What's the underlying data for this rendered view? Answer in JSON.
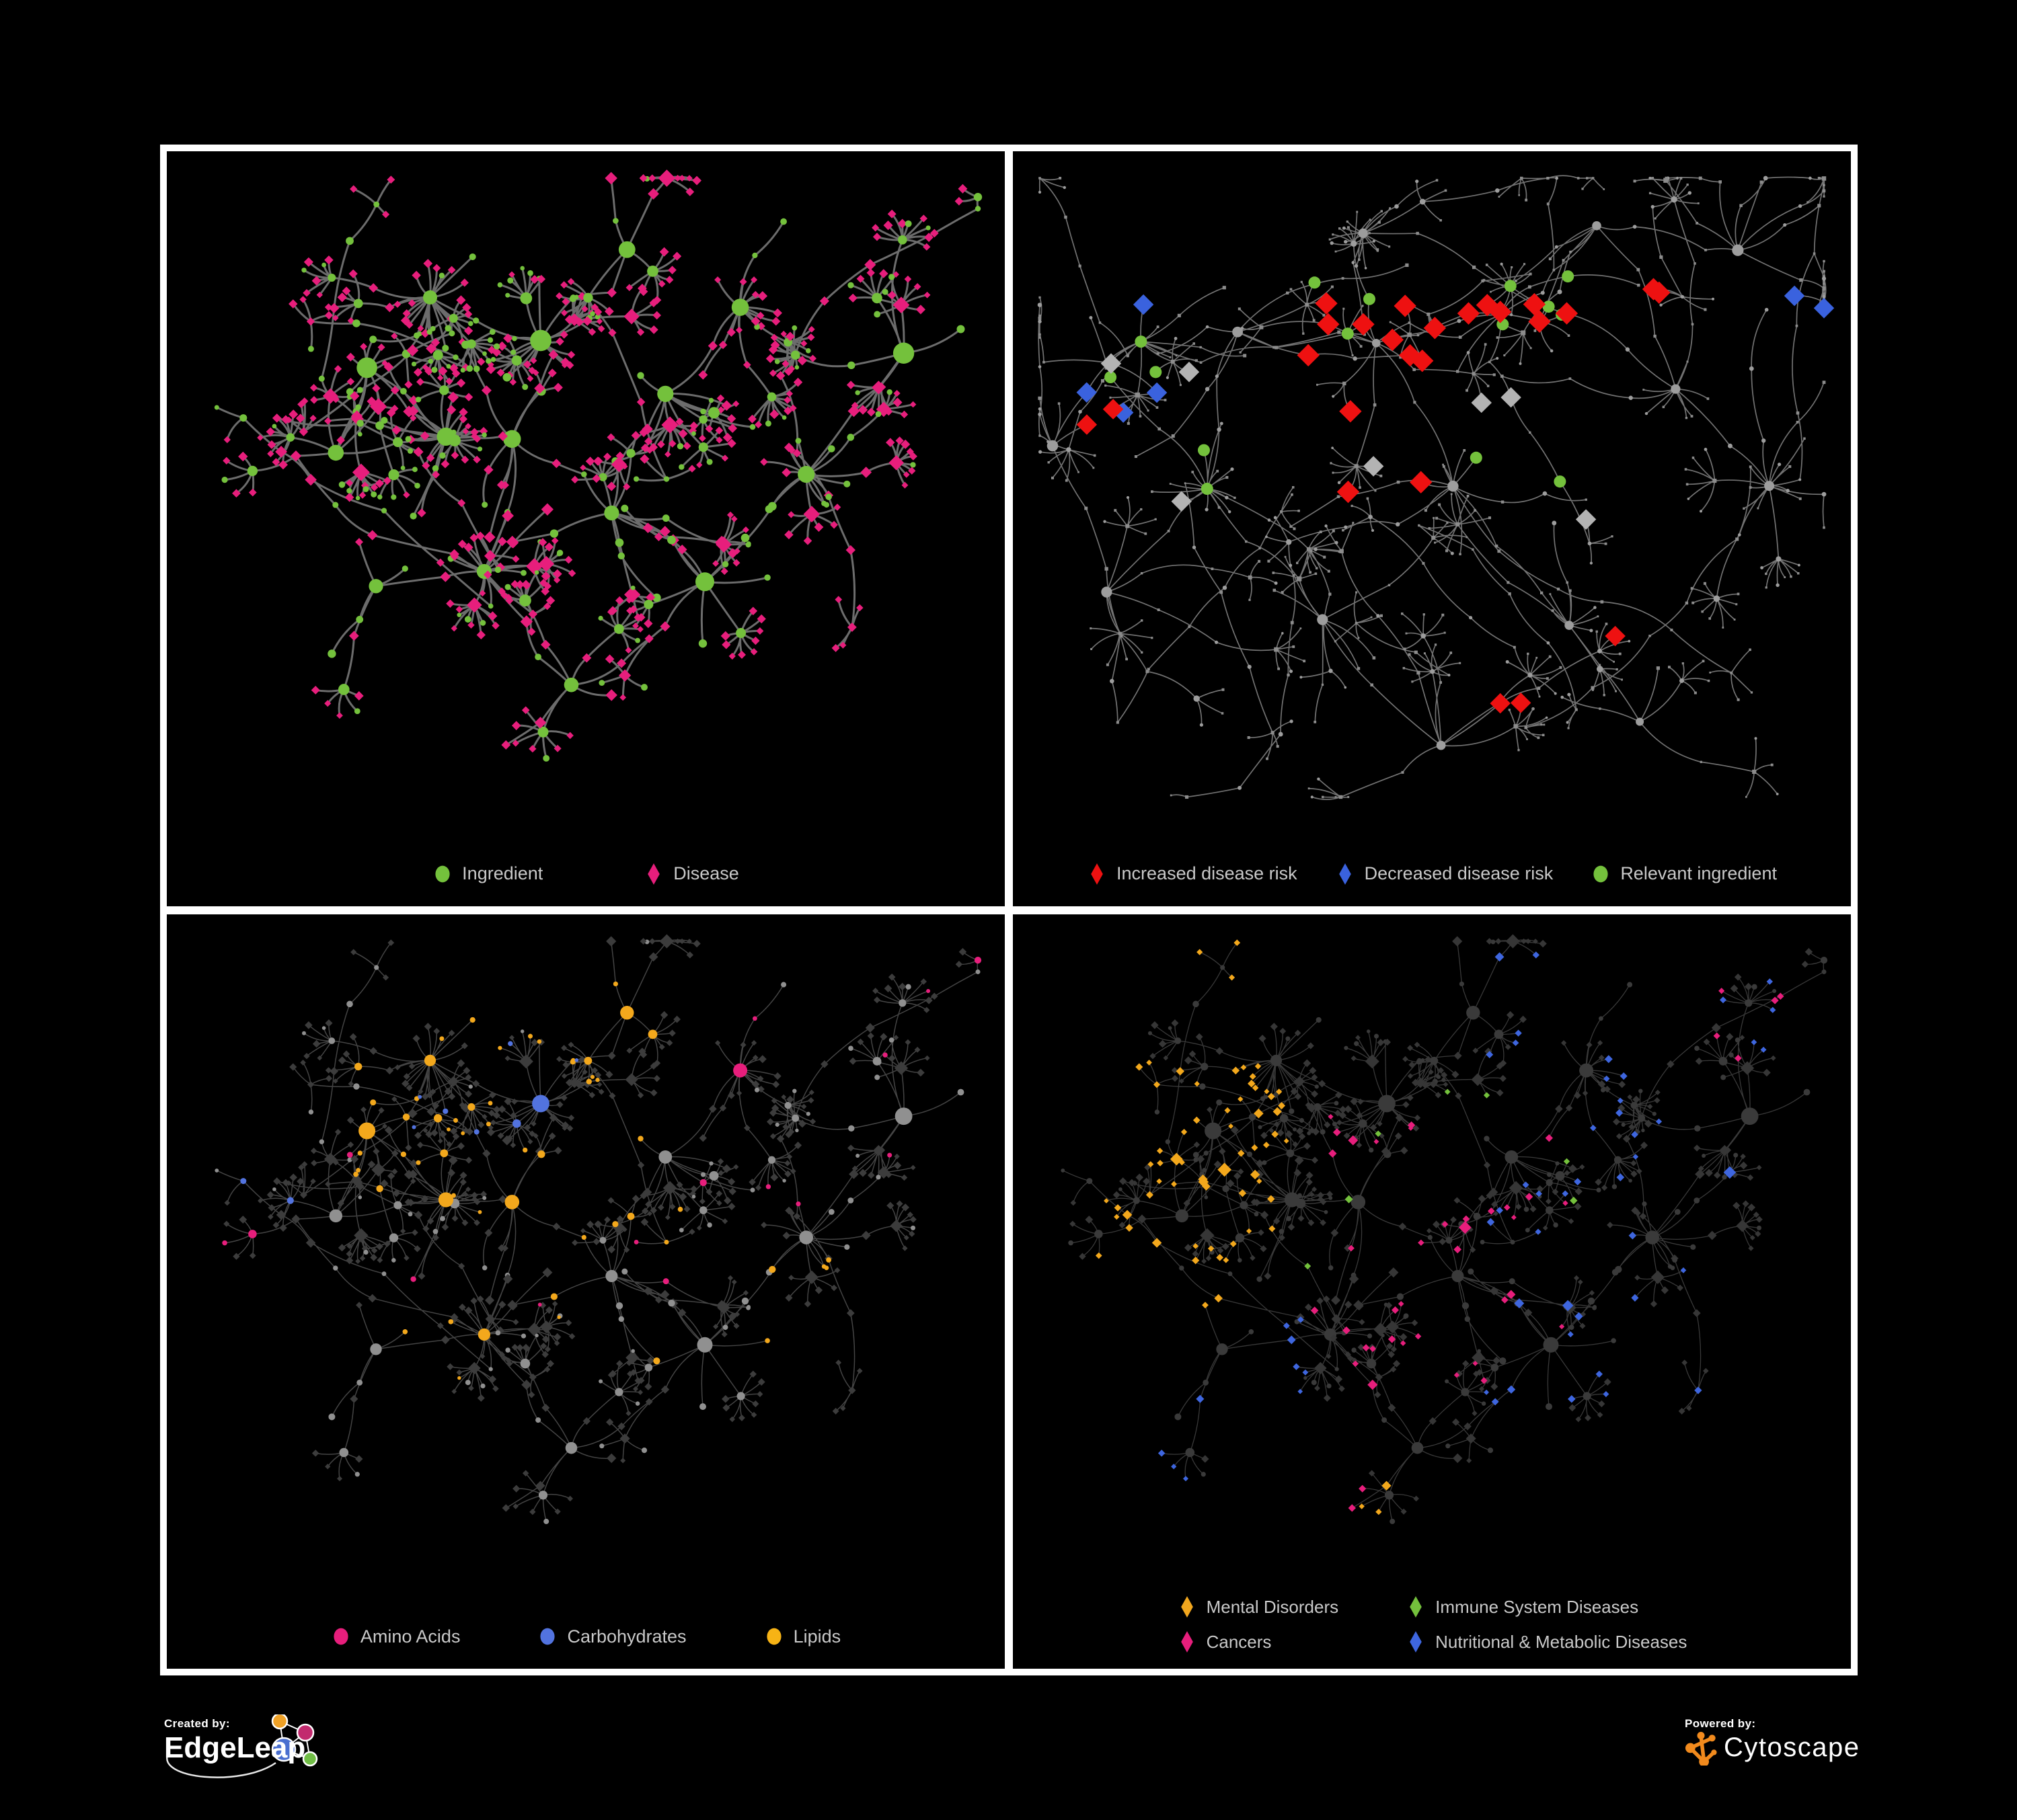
{
  "footer": {
    "created_by": "Created by:",
    "brand_left": "EdgeLeap",
    "powered_by": "Powered by:",
    "brand_right": "Cytoscape"
  },
  "colors": {
    "green": "#74C13C",
    "pink": "#E71E7C",
    "red": "#EE1111",
    "blue_dark": "#3A62DE",
    "blue_mid": "#5273DF",
    "blue_deep": "#3E66DF",
    "orange": "#F3A81C",
    "gold": "#F7B315",
    "gray_node": "#8f8f8f",
    "dark_diamond": "#3a3a3a",
    "legend_text": "#C9C9C9",
    "frame": "#FFFFFF",
    "background": "#000000"
  },
  "structures": {
    "A": {
      "seed": 1402,
      "depth": 2,
      "bMin": 4,
      "bMax": 8,
      "segMin": 45,
      "segMax": 95,
      "leafMin": 22,
      "leafMax": 46,
      "burstProb": 0.5,
      "burstMax": 9,
      "hubBurst": 0.45,
      "extra": 9,
      "leafIng": 0.15,
      "chainIng": 0.4,
      "starIng": 0.55,
      "anchors": [
        [
          0.25,
          0.3
        ],
        [
          0.2,
          0.47
        ],
        [
          0.34,
          0.42
        ],
        [
          0.3,
          0.22
        ],
        [
          0.45,
          0.26
        ],
        [
          0.42,
          0.44
        ],
        [
          0.36,
          0.6
        ],
        [
          0.24,
          0.63
        ],
        [
          0.52,
          0.52
        ],
        [
          0.6,
          0.36
        ],
        [
          0.7,
          0.22
        ],
        [
          0.63,
          0.62
        ],
        [
          0.47,
          0.78
        ],
        [
          0.76,
          0.5
        ],
        [
          0.86,
          0.28
        ],
        [
          0.56,
          0.14
        ]
      ]
    },
    "B": {
      "seed": 977,
      "depth": 3,
      "bMin": 3,
      "bMax": 7,
      "segMin": 55,
      "segMax": 115,
      "leafMin": 25,
      "leafMax": 50,
      "burstProb": 0.45,
      "burstMax": 8,
      "hubBurst": 0.3,
      "extra": 18,
      "leafIng": 0.2,
      "chainIng": 0.3,
      "starIng": 0.4,
      "anchors": [
        [
          0.14,
          0.3
        ],
        [
          0.28,
          0.26
        ],
        [
          0.44,
          0.28
        ],
        [
          0.58,
          0.22
        ],
        [
          0.4,
          0.12
        ],
        [
          0.68,
          0.1
        ],
        [
          0.24,
          0.52
        ],
        [
          0.12,
          0.68
        ],
        [
          0.36,
          0.7
        ],
        [
          0.54,
          0.52
        ],
        [
          0.66,
          0.7
        ],
        [
          0.8,
          0.34
        ],
        [
          0.88,
          0.16
        ],
        [
          0.76,
          0.84
        ],
        [
          0.52,
          0.88
        ],
        [
          0.9,
          0.52
        ],
        [
          0.06,
          0.44
        ]
      ]
    }
  },
  "panels": [
    {
      "name": "ingredient-disease",
      "structure": "A",
      "style": {
        "seed": 11,
        "nodeScale": 1.0,
        "edge": {
          "color": "#787878",
          "width": 3.0,
          "opacity": 0.9
        },
        "base": {
          "ing": {
            "shape": "circle",
            "color": "#74C13C"
          },
          "dis": {
            "shape": "diamond",
            "color": "#E71E7C"
          }
        },
        "rules": [
          {
            "on": "any",
            "shape": "circle",
            "color": "#74C13C",
            "count": 26,
            "region": [
              0.31,
              0.2,
              0.43,
              0.34
            ]
          },
          {
            "on": "any",
            "shape": "circle",
            "color": "#74C13C",
            "count": 14,
            "region": [
              0.2,
              0.4,
              0.3,
              0.52
            ]
          }
        ]
      },
      "legend": {
        "layout": "row",
        "gap": 150,
        "items": [
          {
            "shape": "circle",
            "color": "#74C13C",
            "label": "Ingredient"
          },
          {
            "shape": "diamond",
            "color": "#E71E7C",
            "label": "Disease"
          }
        ]
      }
    },
    {
      "name": "disease-risk",
      "structure": "B",
      "style": {
        "seed": 23,
        "nodeScale": 0.55,
        "edge": {
          "color": "#989898",
          "width": 1.7,
          "opacity": 0.75
        },
        "base": {
          "ing": {
            "shape": "circle",
            "color": "#9d9d9d"
          },
          "dis": {
            "shape": "square",
            "color": "#8c8c8c"
          }
        },
        "rules": [
          {
            "on": "dis",
            "shape": "diamond",
            "color": "#EE1111",
            "size": 11.5,
            "count": 20,
            "region": [
              0.25,
              0.2,
              0.78,
              0.52
            ]
          },
          {
            "on": "dis",
            "shape": "diamond",
            "color": "#EE1111",
            "size": 10.5,
            "count": 3,
            "region": [
              0.5,
              0.68,
              0.72,
              0.85
            ]
          },
          {
            "on": "dis",
            "shape": "diamond",
            "color": "#EE1111",
            "size": 10.5,
            "count": 2,
            "region": [
              0.0,
              0.28,
              0.15,
              0.48
            ]
          },
          {
            "on": "dis",
            "shape": "diamond",
            "color": "#3A62DE",
            "size": 10.5,
            "count": 4,
            "region": [
              0.08,
              0.22,
              0.28,
              0.42
            ]
          },
          {
            "on": "dis",
            "shape": "diamond",
            "color": "#3A62DE",
            "size": 10.5,
            "count": 2,
            "region": [
              0.78,
              0.2,
              0.98,
              0.3
            ]
          },
          {
            "on": "dis",
            "shape": "diamond",
            "color": "#B3B3B3",
            "size": 10.5,
            "count": 7,
            "region": [
              0.1,
              0.28,
              0.72,
              0.58
            ]
          },
          {
            "on": "ing",
            "shape": "circle",
            "color": "#74C13C",
            "size": 9,
            "count": 15,
            "region": [
              0.05,
              0.18,
              0.72,
              0.52
            ]
          }
        ]
      },
      "legend": {
        "layout": "row",
        "gap": 56,
        "items": [
          {
            "shape": "diamond",
            "color": "#EE1111",
            "label": "Increased disease risk"
          },
          {
            "shape": "diamond",
            "color": "#3A62DE",
            "label": "Decreased disease risk"
          },
          {
            "shape": "circle",
            "color": "#74C13C",
            "label": "Relevant ingredient"
          }
        ]
      }
    },
    {
      "name": "macronutrient-categories",
      "structure": "A",
      "style": {
        "seed": 31,
        "nodeScale": 0.82,
        "edge": {
          "color": "#aaaaaa",
          "width": 1.5,
          "opacity": 0.4
        },
        "base": {
          "ing": {
            "shape": "circle",
            "color": "#909090"
          },
          "dis": {
            "shape": "diamond",
            "color": "#3c3c3c"
          }
        },
        "rules": [
          {
            "on": "ing",
            "shape": "circle",
            "color": "#F3A81C",
            "count": 38,
            "region": [
              0.22,
              0.08,
              0.6,
              0.42
            ]
          },
          {
            "on": "ing",
            "shape": "circle",
            "color": "#F3A81C",
            "count": 16,
            "region": [
              0.28,
              0.42,
              0.72,
              0.78
            ]
          },
          {
            "on": "ing",
            "shape": "circle",
            "color": "#F3A81C",
            "count": 4,
            "region": [
              0.72,
              0.5,
              0.95,
              0.75
            ]
          },
          {
            "on": "ing",
            "shape": "circle",
            "color": "#5273DF",
            "count": 8,
            "region": [
              0.28,
              0.1,
              0.52,
              0.4
            ]
          },
          {
            "on": "ing",
            "shape": "circle",
            "color": "#5273DF",
            "count": 2,
            "region": [
              0.0,
              0.15,
              0.15,
              0.45
            ]
          },
          {
            "on": "ing",
            "shape": "circle",
            "color": "#5273DF",
            "count": 1,
            "region": [
              0.75,
              0.55,
              1.0,
              0.75
            ]
          },
          {
            "on": "ing",
            "shape": "circle",
            "color": "#E71E7C",
            "count": 16,
            "region": [
              0.0,
              0.05,
              1.0,
              0.98
            ]
          }
        ]
      },
      "legend": {
        "layout": "row",
        "gap": 115,
        "items": [
          {
            "shape": "circle",
            "color": "#E71E7C",
            "label": "Amino Acids"
          },
          {
            "shape": "circle",
            "color": "#5273DF",
            "label": "Carbohydrates"
          },
          {
            "shape": "circle",
            "color": "#F7B315",
            "label": "Lipids"
          }
        ]
      }
    },
    {
      "name": "disease-categories",
      "structure": "A",
      "style": {
        "seed": 47,
        "nodeScale": 0.82,
        "edge": {
          "color": "#bdbdbd",
          "width": 1.3,
          "opacity": 0.3
        },
        "base": {
          "ing": {
            "shape": "circle",
            "color": "#3a3a3a"
          },
          "dis": {
            "shape": "diamond",
            "color": "#363636"
          }
        },
        "rules": [
          {
            "on": "dis",
            "shape": "diamond",
            "color": "#F3A81C",
            "count": 60,
            "region": [
              0.03,
              0.22,
              0.33,
              0.6
            ]
          },
          {
            "on": "dis",
            "shape": "diamond",
            "color": "#F3A81C",
            "count": 8,
            "region": [
              0.08,
              0.03,
              0.45,
              0.16
            ]
          },
          {
            "on": "dis",
            "shape": "diamond",
            "color": "#F3A81C",
            "count": 3,
            "region": [
              0.3,
              0.78,
              0.5,
              0.95
            ]
          },
          {
            "on": "dis",
            "shape": "diamond",
            "color": "#E71E7C",
            "count": 36,
            "region": [
              0.36,
              0.3,
              0.66,
              0.7
            ]
          },
          {
            "on": "dis",
            "shape": "diamond",
            "color": "#E71E7C",
            "count": 5,
            "region": [
              0.84,
              0.1,
              1.0,
              0.22
            ]
          },
          {
            "on": "dis",
            "shape": "diamond",
            "color": "#E71E7C",
            "count": 4,
            "region": [
              0.2,
              0.85,
              0.45,
              0.98
            ]
          },
          {
            "on": "dis",
            "shape": "diamond",
            "color": "#3E66DF",
            "count": 30,
            "region": [
              0.56,
              0.03,
              0.98,
              0.55
            ]
          },
          {
            "on": "dis",
            "shape": "diamond",
            "color": "#3E66DF",
            "count": 12,
            "region": [
              0.55,
              0.55,
              0.95,
              0.9
            ]
          },
          {
            "on": "dis",
            "shape": "diamond",
            "color": "#3E66DF",
            "count": 10,
            "region": [
              0.04,
              0.6,
              0.35,
              0.92
            ]
          },
          {
            "on": "dis",
            "shape": "diamond",
            "color": "#3E66DF",
            "count": 6,
            "region": [
              0.1,
              0.02,
              0.5,
              0.15
            ]
          },
          {
            "on": "dis",
            "shape": "diamond",
            "color": "#74C13C",
            "count": 7,
            "region": [
              0.32,
              0.18,
              0.68,
              0.6
            ]
          }
        ]
      },
      "legend": {
        "layout": "grid",
        "col_gap": 100,
        "row_gap": 16,
        "items": [
          {
            "shape": "diamond",
            "color": "#F2A71E",
            "label": "Mental Disorders"
          },
          {
            "shape": "diamond",
            "color": "#74C13C",
            "label": "Immune System Diseases"
          },
          {
            "shape": "diamond",
            "color": "#E71E7C",
            "label": "Cancers"
          },
          {
            "shape": "diamond",
            "color": "#3E66DF",
            "label": "Nutritional & Metabolic Diseases"
          }
        ]
      }
    }
  ]
}
